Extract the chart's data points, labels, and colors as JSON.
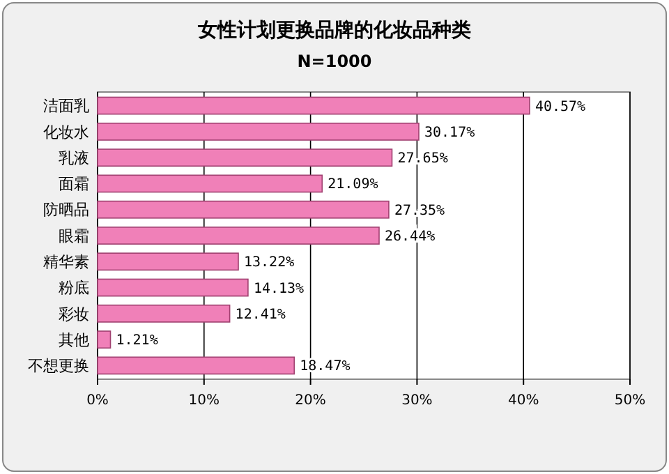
{
  "chart_data": {
    "type": "bar",
    "orientation": "horizontal",
    "title": "女性计划更换品牌的化妆品种类",
    "subtitle": "N=1000",
    "categories": [
      "洁面乳",
      "化妆水",
      "乳液",
      "面霜",
      "防晒品",
      "眼霜",
      "精华素",
      "粉底",
      "彩妆",
      "其他",
      "不想更换"
    ],
    "values": [
      40.57,
      30.17,
      27.65,
      21.09,
      27.35,
      26.44,
      13.22,
      14.13,
      12.41,
      1.21,
      18.47
    ],
    "value_labels": [
      "40.57%",
      "30.17%",
      "27.65%",
      "21.09%",
      "27.35%",
      "26.44%",
      "13.22%",
      "14.13%",
      "12.41%",
      "1.21%",
      "18.47%"
    ],
    "color": "#f080b8",
    "xlim": [
      0,
      50
    ],
    "xticks": [
      {
        "value": 0,
        "label": "0%"
      },
      {
        "value": 10,
        "label": "10%"
      },
      {
        "value": 20,
        "label": "20%"
      },
      {
        "value": 30,
        "label": "30%"
      },
      {
        "value": 40,
        "label": "40%"
      },
      {
        "value": 50,
        "label": "50%"
      }
    ],
    "grid": "x"
  }
}
